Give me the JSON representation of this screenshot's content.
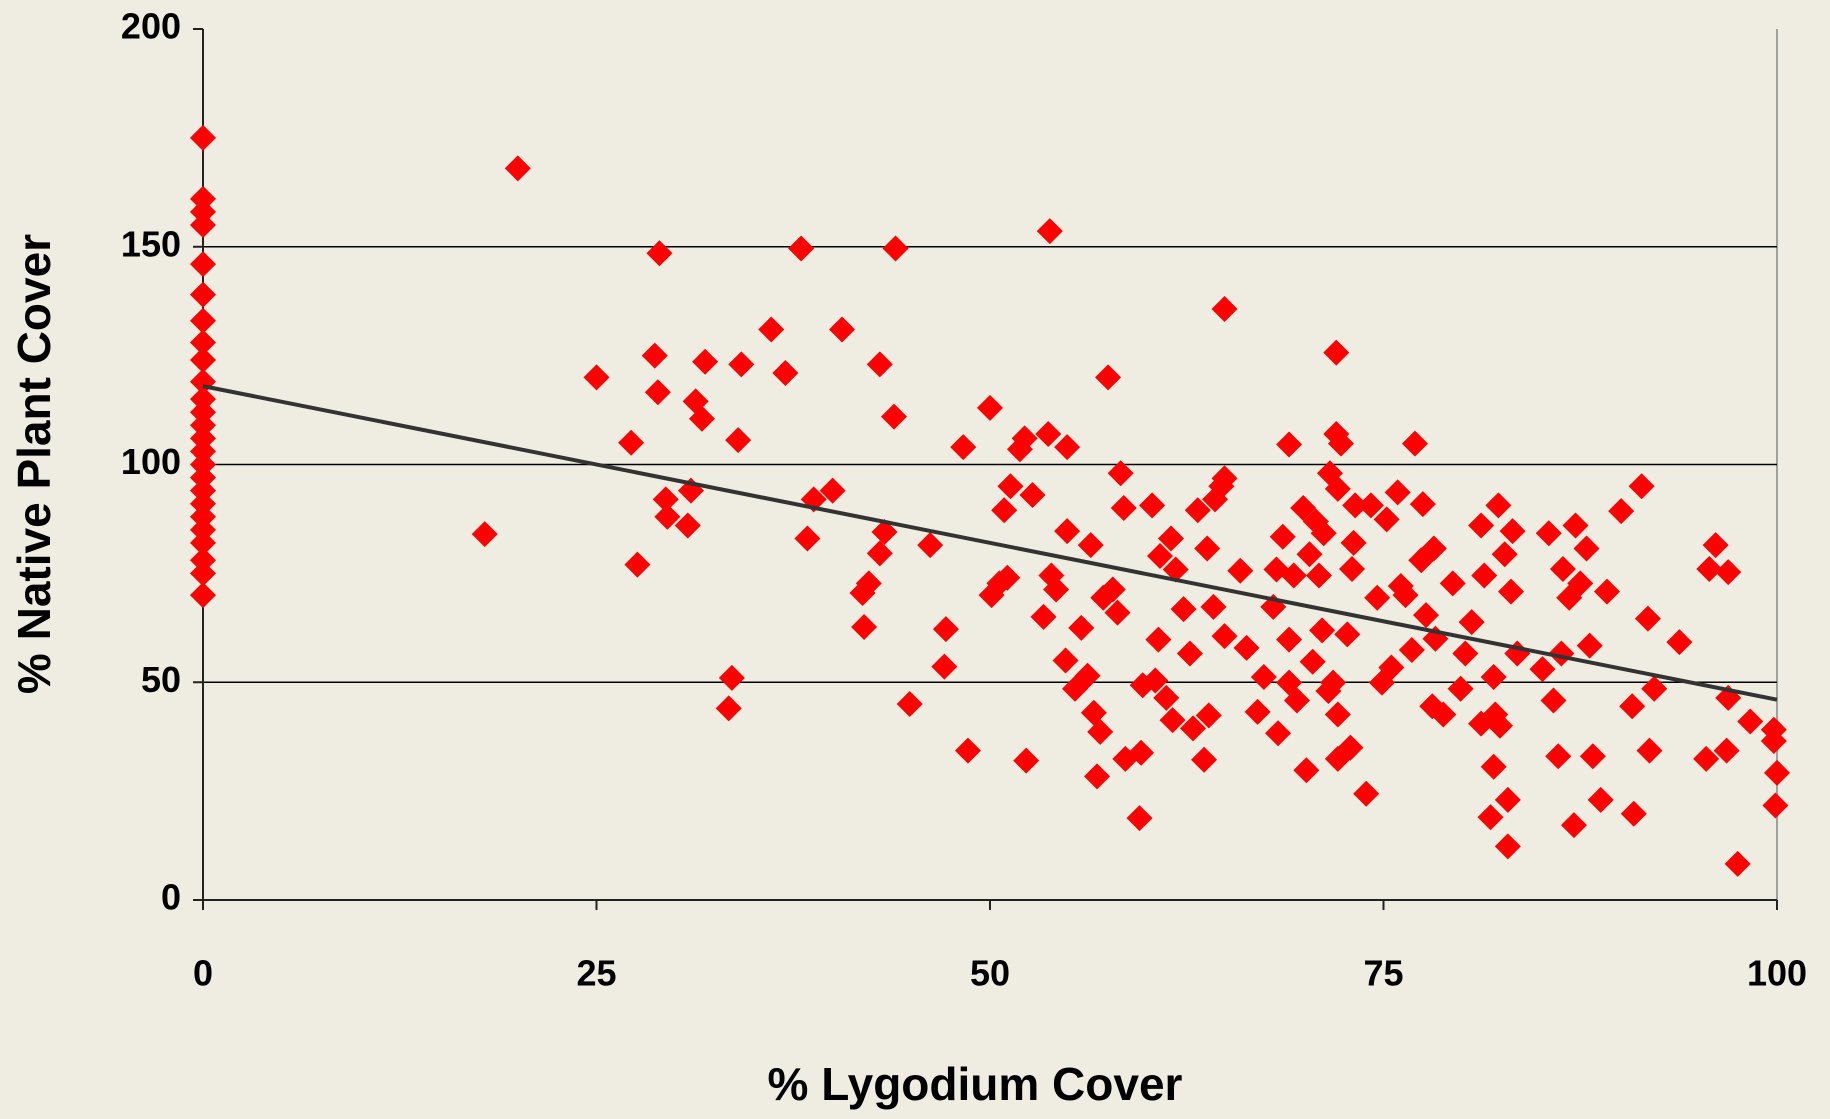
{
  "chart_data": {
    "type": "scatter",
    "x_label": "% Lygodium Cover",
    "y_label": "% Native Plant Cover",
    "xlim": [
      0,
      100
    ],
    "xticks": [
      0,
      25,
      50,
      75,
      100
    ],
    "ylim": [
      0,
      200
    ],
    "yticks": [
      0,
      50,
      100,
      150,
      200
    ],
    "grid": true,
    "color": "#ff0000",
    "x": [
      0,
      0,
      0,
      0,
      0,
      0,
      0,
      0,
      0,
      0,
      0,
      0,
      0,
      0,
      0,
      0,
      0,
      0,
      0,
      0,
      0,
      0,
      0,
      0,
      0,
      17.9,
      20,
      25,
      27.2,
      27.6,
      28.7,
      29,
      28.9,
      29.4,
      29.5,
      30.8,
      31,
      31.3,
      31.7,
      31.9,
      33.4,
      33.6,
      34,
      34.2,
      36.1,
      37,
      38,
      38.4,
      38.8,
      40,
      40.6,
      41.9,
      42,
      42.3,
      43,
      43,
      43.3,
      43.9,
      44,
      44.9,
      46.2,
      47.1,
      47.2,
      48.3,
      48.6,
      50,
      50.1,
      50.6,
      50.9,
      51.1,
      51.3,
      51.9,
      52.2,
      52.3,
      52.7,
      53.4,
      53.7,
      53.8,
      53.9,
      54.2,
      54.9,
      54.8,
      54.9,
      55.4,
      55.8,
      56.2,
      56.4,
      56.6,
      56.8,
      57,
      57.2,
      57.5,
      57.8,
      58.1,
      58.3,
      58.5,
      58.6,
      59.5,
      59.6,
      59.7,
      60.3,
      60.5,
      60.7,
      60.8,
      61.2,
      61.5,
      61.8,
      61.6,
      62.3,
      62.7,
      62.9,
      63.2,
      63.6,
      63.8,
      63.9,
      64.2,
      64.3,
      64.7,
      64.9,
      64.9,
      64.9,
      65.9,
      66.3,
      67,
      67.4,
      68,
      68.2,
      68.3,
      68.6,
      69,
      69,
      69,
      69.3,
      69.5,
      69.9,
      70.1,
      70.3,
      70.5,
      70.7,
      70.9,
      71.1,
      71.2,
      71.5,
      71.6,
      71.8,
      72,
      72,
      72.1,
      72.1,
      72.1,
      72.3,
      72.7,
      72.9,
      73,
      73.1,
      73.2,
      73.9,
      74.2,
      74.6,
      74.9,
      75.2,
      75.5,
      75.9,
      76.1,
      76.4,
      76.8,
      77,
      77.4,
      77.5,
      77.7,
      78.1,
      78.2,
      78.3,
      78.8,
      79.4,
      79.9,
      80.2,
      80.6,
      81.2,
      81.2,
      81.4,
      81.8,
      82,
      82,
      82.1,
      82.3,
      82.4,
      82.7,
      82.9,
      82.9,
      83.2,
      83.1,
      83.5,
      85.1,
      85.5,
      85.8,
      86.1,
      86.3,
      86.4,
      86.8,
      87.1,
      87.2,
      87.5,
      87.9,
      88.1,
      88.3,
      88.8,
      89.2,
      90.1,
      90.8,
      90.9,
      91.4,
      91.8,
      91.9,
      92.2,
      93.8,
      95.5,
      95.7,
      96.1,
      96.8,
      96.9,
      96.9,
      97.5,
      98.3,
      99.8,
      99.9,
      100,
      99.8
    ],
    "values": [
      175,
      161,
      158,
      155,
      146,
      139,
      133,
      128,
      124,
      119,
      115,
      112,
      109,
      106,
      103,
      100,
      97,
      94,
      91,
      88,
      85,
      82,
      78,
      75,
      70,
      84,
      168,
      120,
      105,
      77,
      125,
      148.5,
      116.6,
      92,
      88,
      86,
      94,
      114.5,
      110.5,
      123.6,
      44,
      51,
      105.6,
      123,
      131,
      121,
      149.6,
      83,
      92,
      94,
      131,
      70.5,
      62.7,
      72.7,
      123,
      79.6,
      84.5,
      111,
      149.6,
      45,
      81.5,
      53.6,
      62.2,
      104,
      34.3,
      113,
      70,
      72.7,
      89.5,
      74,
      95,
      103.5,
      106,
      32,
      93,
      65,
      107,
      153.6,
      74.5,
      71.3,
      104,
      55,
      84.7,
      48.5,
      62.5,
      51.5,
      81.5,
      43,
      28.4,
      38.6,
      69.4,
      120,
      71.3,
      66,
      98,
      90,
      32.4,
      18.8,
      33.8,
      49.3,
      90.6,
      50.4,
      59.8,
      79,
      46.4,
      83,
      75.9,
      41.3,
      66.8,
      56.6,
      39.4,
      89.5,
      32.2,
      80.7,
      42.4,
      67.3,
      92,
      95,
      60.6,
      135.7,
      96.8,
      75.6,
      57.9,
      43.2,
      51.2,
      67.3,
      75.9,
      38.3,
      83.4,
      104.6,
      59.8,
      49.9,
      74.5,
      45.8,
      90,
      29.8,
      79.4,
      54.7,
      86.9,
      74.5,
      61.9,
      84.2,
      48,
      98,
      49.9,
      125.7,
      107,
      94.4,
      32.4,
      42.6,
      104.8,
      61,
      35,
      76,
      82,
      90.6,
      24.4,
      90.6,
      69.4,
      49.9,
      87.4,
      53.4,
      93.6,
      72.1,
      70,
      57.4,
      104.8,
      78,
      90.9,
      65.4,
      44.5,
      80.7,
      60,
      42.6,
      72.7,
      48.5,
      56.6,
      63.8,
      86,
      40.5,
      74.5,
      19,
      30.6,
      51.2,
      42.6,
      90.6,
      40,
      79.4,
      12.3,
      23,
      84.7,
      70.8,
      56.6,
      53,
      84.2,
      45.8,
      33,
      56.6,
      76,
      69.4,
      17.2,
      86,
      72.7,
      80.7,
      58.4,
      33,
      23,
      70.8,
      89.3,
      44.5,
      19.8,
      95,
      64.6,
      34.3,
      48.5,
      59.2,
      32.4,
      76,
      81.5,
      34.3,
      75.3,
      46.4,
      8.3,
      41,
      39.1,
      21.7,
      29.2,
      36.5
    ],
    "trendline": {
      "x": [
        0,
        100
      ],
      "values": [
        118,
        46
      ],
      "color": "#333333"
    }
  }
}
